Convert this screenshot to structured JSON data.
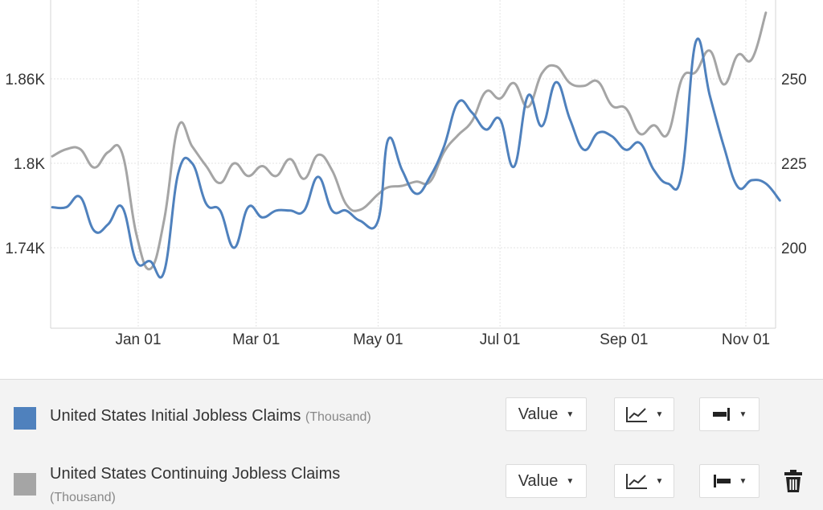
{
  "chart_data": {
    "type": "line",
    "x_ticks": [
      "Jan 01",
      "Mar 01",
      "May 01",
      "Jul 01",
      "Sep 01",
      "Nov 01"
    ],
    "x_tick_dates": [
      "2023-01-01",
      "2023-03-01",
      "2023-05-01",
      "2023-07-01",
      "2023-09-01",
      "2023-11-01"
    ],
    "y_left": {
      "ticks": [
        "1.86K",
        "1.8K",
        "1.74K"
      ],
      "tick_values": [
        1860,
        1800,
        1740
      ],
      "range": [
        1680,
        1920
      ]
    },
    "y_right": {
      "ticks": [
        "250",
        "225",
        "200"
      ],
      "tick_values": [
        250,
        225,
        200
      ],
      "range": [
        177,
        275
      ]
    },
    "grid": true,
    "series": [
      {
        "name": "United States Initial Jobless Claims",
        "unit": "(Thousand)",
        "axis": "right",
        "color": "#4f81bd",
        "points": [
          [
            "2022-11-19",
            212
          ],
          [
            "2022-11-26",
            212
          ],
          [
            "2022-12-03",
            215
          ],
          [
            "2022-12-10",
            205
          ],
          [
            "2022-12-17",
            207
          ],
          [
            "2022-12-24",
            212
          ],
          [
            "2022-12-31",
            196
          ],
          [
            "2023-01-07",
            196
          ],
          [
            "2023-01-14",
            193
          ],
          [
            "2023-01-21",
            222
          ],
          [
            "2023-01-28",
            225
          ],
          [
            "2023-02-04",
            213
          ],
          [
            "2023-02-11",
            211
          ],
          [
            "2023-02-18",
            200
          ],
          [
            "2023-02-25",
            212
          ],
          [
            "2023-03-04",
            209
          ],
          [
            "2023-03-11",
            211
          ],
          [
            "2023-03-18",
            211
          ],
          [
            "2023-03-25",
            211
          ],
          [
            "2023-04-01",
            221
          ],
          [
            "2023-04-08",
            211
          ],
          [
            "2023-04-15",
            211
          ],
          [
            "2023-04-22",
            208
          ],
          [
            "2023-05-01",
            208
          ],
          [
            "2023-05-06",
            232
          ],
          [
            "2023-05-13",
            223
          ],
          [
            "2023-05-20",
            216
          ],
          [
            "2023-05-27",
            221
          ],
          [
            "2023-06-03",
            230
          ],
          [
            "2023-06-10",
            243
          ],
          [
            "2023-06-17",
            240
          ],
          [
            "2023-06-24",
            235
          ],
          [
            "2023-07-01",
            238
          ],
          [
            "2023-07-08",
            224
          ],
          [
            "2023-07-15",
            245
          ],
          [
            "2023-07-22",
            236
          ],
          [
            "2023-07-29",
            249
          ],
          [
            "2023-08-05",
            238
          ],
          [
            "2023-08-12",
            229
          ],
          [
            "2023-08-19",
            234
          ],
          [
            "2023-08-26",
            233
          ],
          [
            "2023-09-02",
            229
          ],
          [
            "2023-09-09",
            231
          ],
          [
            "2023-09-16",
            223
          ],
          [
            "2023-09-23",
            219
          ],
          [
            "2023-09-30",
            222
          ],
          [
            "2023-10-07",
            261
          ],
          [
            "2023-10-14",
            245
          ],
          [
            "2023-10-21",
            230
          ],
          [
            "2023-10-28",
            218
          ],
          [
            "2023-11-04",
            220
          ],
          [
            "2023-11-11",
            219
          ],
          [
            "2023-11-18",
            214
          ]
        ]
      },
      {
        "name": "United States Continuing Jobless Claims",
        "unit": "(Thousand)",
        "axis": "left",
        "color": "#a5a5a5",
        "points": [
          [
            "2022-11-19",
            1805
          ],
          [
            "2022-11-26",
            1810
          ],
          [
            "2022-12-03",
            1810
          ],
          [
            "2022-12-10",
            1797
          ],
          [
            "2022-12-17",
            1808
          ],
          [
            "2022-12-24",
            1807
          ],
          [
            "2022-12-31",
            1750
          ],
          [
            "2023-01-07",
            1725
          ],
          [
            "2023-01-14",
            1760
          ],
          [
            "2023-01-21",
            1826
          ],
          [
            "2023-01-28",
            1812
          ],
          [
            "2023-02-04",
            1798
          ],
          [
            "2023-02-11",
            1786
          ],
          [
            "2023-02-18",
            1800
          ],
          [
            "2023-02-25",
            1791
          ],
          [
            "2023-03-04",
            1798
          ],
          [
            "2023-03-11",
            1791
          ],
          [
            "2023-03-18",
            1803
          ],
          [
            "2023-03-25",
            1789
          ],
          [
            "2023-04-01",
            1806
          ],
          [
            "2023-04-08",
            1795
          ],
          [
            "2023-04-15",
            1771
          ],
          [
            "2023-04-22",
            1767
          ],
          [
            "2023-05-01",
            1778
          ],
          [
            "2023-05-06",
            1783
          ],
          [
            "2023-05-13",
            1784
          ],
          [
            "2023-05-20",
            1787
          ],
          [
            "2023-05-27",
            1787
          ],
          [
            "2023-06-03",
            1808
          ],
          [
            "2023-06-10",
            1820
          ],
          [
            "2023-06-17",
            1830
          ],
          [
            "2023-06-24",
            1851
          ],
          [
            "2023-07-01",
            1846
          ],
          [
            "2023-07-08",
            1857
          ],
          [
            "2023-07-15",
            1840
          ],
          [
            "2023-07-22",
            1864
          ],
          [
            "2023-07-29",
            1869
          ],
          [
            "2023-08-05",
            1857
          ],
          [
            "2023-08-12",
            1855
          ],
          [
            "2023-08-19",
            1858
          ],
          [
            "2023-08-26",
            1841
          ],
          [
            "2023-09-02",
            1839
          ],
          [
            "2023-09-09",
            1821
          ],
          [
            "2023-09-16",
            1827
          ],
          [
            "2023-09-23",
            1821
          ],
          [
            "2023-09-30",
            1860
          ],
          [
            "2023-10-07",
            1865
          ],
          [
            "2023-10-14",
            1880
          ],
          [
            "2023-10-21",
            1856
          ],
          [
            "2023-10-28",
            1877
          ],
          [
            "2023-11-04",
            1874
          ],
          [
            "2023-11-11",
            1907
          ]
        ]
      }
    ]
  },
  "legend": {
    "rows": [
      {
        "name": "United States Initial Jobless Claims",
        "unit": "(Thousand)",
        "color": "#4f81bd",
        "value_label": "Value",
        "axis_icon": "axis-right-icon"
      },
      {
        "name": "United States Continuing Jobless Claims",
        "unit": "(Thousand)",
        "color": "#a5a5a5",
        "value_label": "Value",
        "axis_icon": "axis-left-icon",
        "delete_icon": "trash-icon"
      }
    ]
  }
}
